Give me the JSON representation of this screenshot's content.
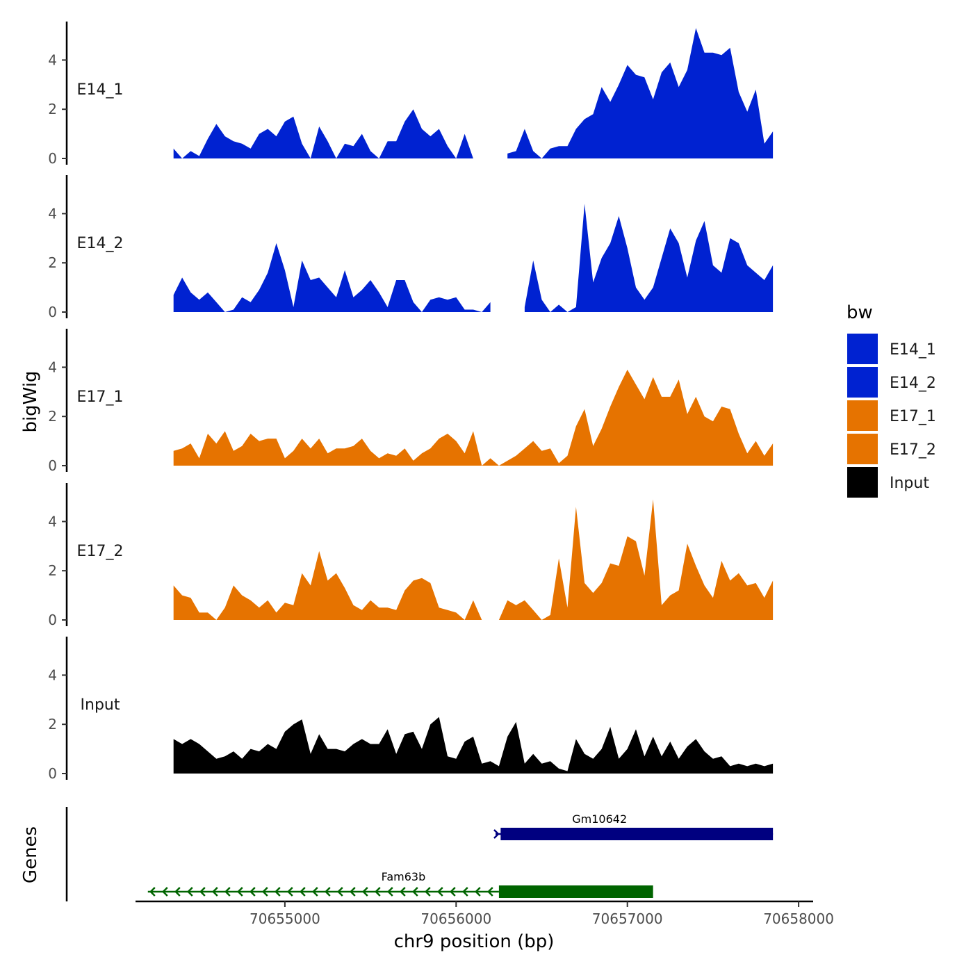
{
  "chart_data": {
    "type": "area",
    "title": "",
    "ylabel": "bigWig",
    "xlabel": "chr9 position (bp)",
    "genes_label": "Genes",
    "ylim": [
      0,
      5.5
    ],
    "xlim": [
      70654150,
      70658050
    ],
    "y_ticks": [
      0,
      2,
      4
    ],
    "x_ticks": [
      70655000,
      70656000,
      70657000,
      70658000
    ],
    "legend": {
      "title": "bw",
      "position": "right",
      "entries": [
        {
          "label": "E14_1",
          "color": "#0022d1"
        },
        {
          "label": "E14_2",
          "color": "#0022d1"
        },
        {
          "label": "E17_1",
          "color": "#e67300"
        },
        {
          "label": "E17_2",
          "color": "#e67300"
        },
        {
          "label": "Input",
          "color": "#000000"
        }
      ]
    },
    "tracks": [
      {
        "name": "E14_1",
        "color": "#0022d1",
        "x": [
          70654350,
          70654400,
          70654450,
          70654500,
          70654550,
          70654600,
          70654650,
          70654700,
          70654750,
          70654800,
          70654850,
          70654900,
          70654950,
          70655000,
          70655050,
          70655100,
          70655150,
          70655200,
          70655250,
          70655300,
          70655350,
          70655400,
          70655450,
          70655500,
          70655550,
          70655600,
          70655650,
          70655700,
          70655750,
          70655800,
          70655850,
          70655900,
          70655950,
          70656000,
          70656050,
          70656100,
          70656150,
          70656200,
          70656250,
          70656300,
          70656350,
          70656400,
          70656450,
          70656500,
          70656550,
          70656600,
          70656650,
          70656700,
          70656750,
          70656800,
          70656850,
          70656900,
          70656950,
          70657000,
          70657050,
          70657100,
          70657150,
          70657200,
          70657250,
          70657300,
          70657350,
          70657400,
          70657450,
          70657500,
          70657550,
          70657600,
          70657650,
          70657700,
          70657750,
          70657800,
          70657850
        ],
        "y": [
          0.4,
          0,
          0.3,
          0.1,
          0.8,
          1.4,
          0.9,
          0.7,
          0.6,
          0.4,
          1,
          1.2,
          0.9,
          1.5,
          1.7,
          0.6,
          0,
          1.3,
          0.7,
          0,
          0.6,
          0.5,
          1,
          0.3,
          0,
          0.7,
          0.7,
          1.5,
          2,
          1.2,
          0.9,
          1.2,
          0.5,
          0,
          1,
          0,
          null,
          null,
          null,
          0.2,
          0.3,
          1.2,
          0.3,
          0,
          0.4,
          0.5,
          0.5,
          1.2,
          1.6,
          1.8,
          2.9,
          2.3,
          3,
          3.8,
          3.4,
          3.3,
          2.4,
          3.5,
          3.9,
          2.9,
          3.6,
          5.3,
          4.3,
          4.3,
          4.2,
          4.5,
          2.7,
          1.9,
          2.8,
          0.6,
          1.1
        ]
      },
      {
        "name": "E14_2",
        "color": "#0022d1",
        "x": [
          70654350,
          70654400,
          70654450,
          70654500,
          70654550,
          70654600,
          70654650,
          70654700,
          70654750,
          70654800,
          70654850,
          70654900,
          70654950,
          70655000,
          70655050,
          70655100,
          70655150,
          70655200,
          70655250,
          70655300,
          70655350,
          70655400,
          70655450,
          70655500,
          70655550,
          70655600,
          70655650,
          70655700,
          70655750,
          70655800,
          70655850,
          70655900,
          70655950,
          70656000,
          70656050,
          70656100,
          70656150,
          70656200,
          70656250,
          70656300,
          70656350,
          70656400,
          70656450,
          70656500,
          70656550,
          70656600,
          70656650,
          70656700,
          70656750,
          70656800,
          70656850,
          70656900,
          70656950,
          70657000,
          70657050,
          70657100,
          70657150,
          70657200,
          70657250,
          70657300,
          70657350,
          70657400,
          70657450,
          70657500,
          70657550,
          70657600,
          70657650,
          70657700,
          70657750,
          70657800,
          70657850
        ],
        "y": [
          0.7,
          1.4,
          0.8,
          0.5,
          0.8,
          0.4,
          0,
          0.1,
          0.6,
          0.4,
          0.9,
          1.6,
          2.8,
          1.7,
          0.2,
          2.1,
          1.3,
          1.4,
          1,
          0.6,
          1.7,
          0.6,
          0.9,
          1.3,
          0.8,
          0.2,
          1.3,
          1.3,
          0.4,
          0,
          0.5,
          0.6,
          0.5,
          0.6,
          0.1,
          0.1,
          0,
          0.4,
          null,
          null,
          null,
          0.2,
          2.1,
          0.5,
          0,
          0.3,
          0,
          0.2,
          4.4,
          1.2,
          2.2,
          2.8,
          3.9,
          2.6,
          1,
          0.5,
          1,
          2.2,
          3.4,
          2.8,
          1.4,
          2.9,
          3.7,
          1.9,
          1.6,
          3,
          2.8,
          1.9,
          1.6,
          1.3,
          1.9
        ]
      },
      {
        "name": "E17_1",
        "color": "#e67300",
        "x": [
          70654350,
          70654400,
          70654450,
          70654500,
          70654550,
          70654600,
          70654650,
          70654700,
          70654750,
          70654800,
          70654850,
          70654900,
          70654950,
          70655000,
          70655050,
          70655100,
          70655150,
          70655200,
          70655250,
          70655300,
          70655350,
          70655400,
          70655450,
          70655500,
          70655550,
          70655600,
          70655650,
          70655700,
          70655750,
          70655800,
          70655850,
          70655900,
          70655950,
          70656000,
          70656050,
          70656100,
          70656150,
          70656200,
          70656250,
          70656300,
          70656350,
          70656400,
          70656450,
          70656500,
          70656550,
          70656600,
          70656650,
          70656700,
          70656750,
          70656800,
          70656850,
          70656900,
          70656950,
          70657000,
          70657050,
          70657100,
          70657150,
          70657200,
          70657250,
          70657300,
          70657350,
          70657400,
          70657450,
          70657500,
          70657550,
          70657600,
          70657650,
          70657700,
          70657750,
          70657800,
          70657850
        ],
        "y": [
          0.6,
          0.7,
          0.9,
          0.3,
          1.3,
          0.9,
          1.4,
          0.6,
          0.8,
          1.3,
          1,
          1.1,
          1.1,
          0.3,
          0.6,
          1.1,
          0.7,
          1.1,
          0.5,
          0.7,
          0.7,
          0.8,
          1.1,
          0.6,
          0.3,
          0.5,
          0.4,
          0.7,
          0.2,
          0.5,
          0.7,
          1.1,
          1.3,
          1,
          0.5,
          1.4,
          0,
          0.3,
          0,
          0.2,
          0.4,
          0.7,
          1,
          0.6,
          0.7,
          0.1,
          0.4,
          1.6,
          2.3,
          0.8,
          1.5,
          2.4,
          3.2,
          3.9,
          3.3,
          2.7,
          3.6,
          2.8,
          2.8,
          3.5,
          2.1,
          2.8,
          2,
          1.8,
          2.4,
          2.3,
          1.3,
          0.5,
          1,
          0.4,
          0.9
        ]
      },
      {
        "name": "E17_2",
        "color": "#e67300",
        "x": [
          70654350,
          70654400,
          70654450,
          70654500,
          70654550,
          70654600,
          70654650,
          70654700,
          70654750,
          70654800,
          70654850,
          70654900,
          70654950,
          70655000,
          70655050,
          70655100,
          70655150,
          70655200,
          70655250,
          70655300,
          70655350,
          70655400,
          70655450,
          70655500,
          70655550,
          70655600,
          70655650,
          70655700,
          70655750,
          70655800,
          70655850,
          70655900,
          70655950,
          70656000,
          70656050,
          70656100,
          70656150,
          70656200,
          70656250,
          70656300,
          70656350,
          70656400,
          70656450,
          70656500,
          70656550,
          70656600,
          70656650,
          70656700,
          70656750,
          70656800,
          70656850,
          70656900,
          70656950,
          70657000,
          70657050,
          70657100,
          70657150,
          70657200,
          70657250,
          70657300,
          70657350,
          70657400,
          70657450,
          70657500,
          70657550,
          70657600,
          70657650,
          70657700,
          70657750,
          70657800,
          70657850
        ],
        "y": [
          1.4,
          1,
          0.9,
          0.3,
          0.3,
          0,
          0.5,
          1.4,
          1,
          0.8,
          0.5,
          0.8,
          0.3,
          0.7,
          0.6,
          1.9,
          1.4,
          2.8,
          1.6,
          1.9,
          1.3,
          0.6,
          0.4,
          0.8,
          0.5,
          0.5,
          0.4,
          1.2,
          1.6,
          1.7,
          1.5,
          0.5,
          0.4,
          0.3,
          0,
          0.8,
          0,
          null,
          0,
          0.8,
          0.6,
          0.8,
          0.4,
          0,
          0.2,
          2.5,
          0.5,
          4.6,
          1.5,
          1.1,
          1.5,
          2.3,
          2.2,
          3.4,
          3.2,
          1.8,
          4.9,
          0.6,
          1,
          1.2,
          3.1,
          2.2,
          1.4,
          0.9,
          2.4,
          1.6,
          1.9,
          1.4,
          1.5,
          0.9,
          1.6
        ]
      },
      {
        "name": "Input",
        "color": "#000000",
        "x": [
          70654350,
          70654400,
          70654450,
          70654500,
          70654550,
          70654600,
          70654650,
          70654700,
          70654750,
          70654800,
          70654850,
          70654900,
          70654950,
          70655000,
          70655050,
          70655100,
          70655150,
          70655200,
          70655250,
          70655300,
          70655350,
          70655400,
          70655450,
          70655500,
          70655550,
          70655600,
          70655650,
          70655700,
          70655750,
          70655800,
          70655850,
          70655900,
          70655950,
          70656000,
          70656050,
          70656100,
          70656150,
          70656200,
          70656250,
          70656300,
          70656350,
          70656400,
          70656450,
          70656500,
          70656550,
          70656600,
          70656650,
          70656700,
          70656750,
          70656800,
          70656850,
          70656900,
          70656950,
          70657000,
          70657050,
          70657100,
          70657150,
          70657200,
          70657250,
          70657300,
          70657350,
          70657400,
          70657450,
          70657500,
          70657550,
          70657600,
          70657650,
          70657700,
          70657750,
          70657800,
          70657850
        ],
        "y": [
          1.4,
          1.2,
          1.4,
          1.2,
          0.9,
          0.6,
          0.7,
          0.9,
          0.6,
          1,
          0.9,
          1.2,
          1,
          1.7,
          2,
          2.2,
          0.8,
          1.6,
          1,
          1,
          0.9,
          1.2,
          1.4,
          1.2,
          1.2,
          1.8,
          0.8,
          1.6,
          1.7,
          1,
          2,
          2.3,
          0.7,
          0.6,
          1.3,
          1.5,
          0.4,
          0.5,
          0.3,
          1.5,
          2.1,
          0.4,
          0.8,
          0.4,
          0.5,
          0.2,
          0.1,
          1.4,
          0.8,
          0.6,
          1,
          1.9,
          0.6,
          1,
          1.8,
          0.7,
          1.5,
          0.7,
          1.3,
          0.6,
          1.1,
          1.4,
          0.9,
          0.6,
          0.7,
          0.3,
          0.4,
          0.3,
          0.4,
          0.3,
          0.4
        ]
      }
    ],
    "genes": [
      {
        "name": "Gm10642",
        "strand": "+",
        "color": "#000080",
        "line_start": 70656230,
        "line_end": 70657850,
        "exon_start": 70656260,
        "exon_end": 70657850
      },
      {
        "name": "Fam63b",
        "strand": "-",
        "color": "#006400",
        "line_start": 70654200,
        "line_end": 70656250,
        "exon_start": 70656250,
        "exon_end": 70657150
      }
    ]
  }
}
